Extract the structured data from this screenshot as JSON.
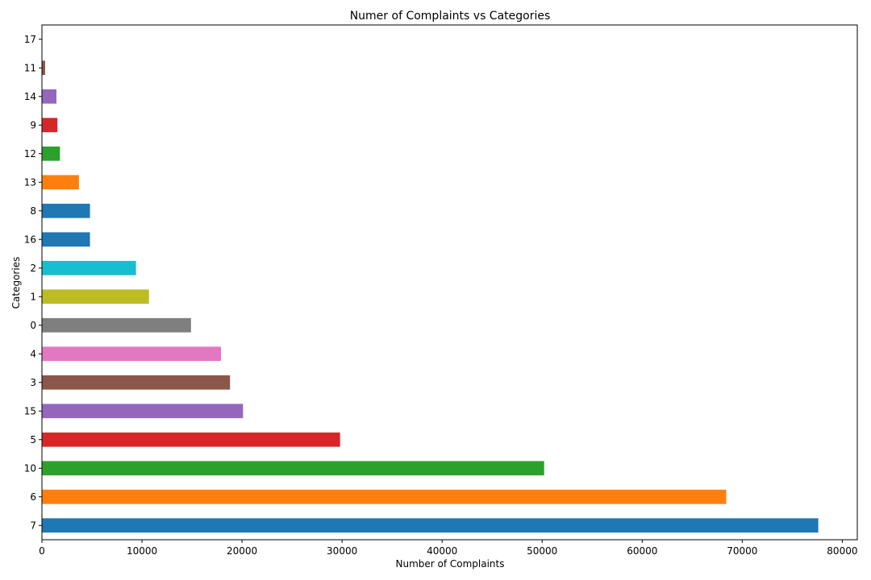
{
  "chart_data": {
    "type": "bar",
    "orientation": "horizontal",
    "title": "Numer of Complaints vs Categories",
    "xlabel": "Number of Complaints",
    "ylabel": "Categories",
    "xlim": [
      0,
      81500
    ],
    "x_ticks": [
      0,
      10000,
      20000,
      30000,
      40000,
      50000,
      60000,
      70000,
      80000
    ],
    "x_tick_labels": [
      "0",
      "10000",
      "20000",
      "30000",
      "40000",
      "50000",
      "60000",
      "70000",
      "80000"
    ],
    "grid": false,
    "legend": "none",
    "categories": [
      "7",
      "6",
      "10",
      "5",
      "15",
      "3",
      "4",
      "0",
      "1",
      "2",
      "16",
      "8",
      "13",
      "12",
      "9",
      "14",
      "11",
      "17"
    ],
    "values": [
      77600,
      68400,
      50200,
      29800,
      20100,
      18800,
      17900,
      14900,
      10700,
      9400,
      4800,
      4800,
      3700,
      1800,
      1550,
      1450,
      320,
      10
    ],
    "colors": [
      "#1f77b4",
      "#ff7f0e",
      "#2ca02c",
      "#d62728",
      "#9467bd",
      "#8c564b",
      "#e377c2",
      "#7f7f7f",
      "#bcbd22",
      "#17becf",
      "#1f77b4",
      "#1f77b4",
      "#ff7f0e",
      "#2ca02c",
      "#d62728",
      "#9467bd",
      "#8c564b",
      "#e377c2"
    ]
  }
}
